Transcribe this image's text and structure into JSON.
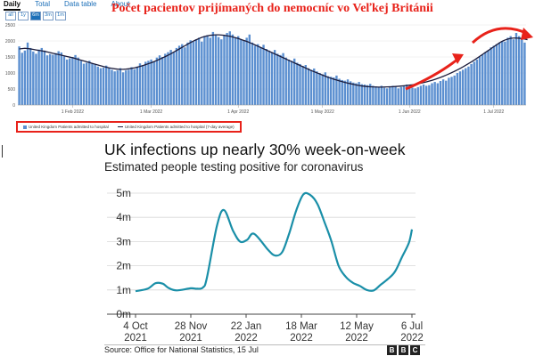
{
  "dashboard": {
    "tabs": [
      {
        "label": "Daily",
        "active": true
      },
      {
        "label": "Total",
        "active": false
      },
      {
        "label": "Data table",
        "active": false
      },
      {
        "label": "About",
        "active": false
      }
    ],
    "ranges": [
      {
        "label": "all",
        "active": false
      },
      {
        "label": "1y",
        "active": false
      },
      {
        "label": "6m",
        "active": true
      },
      {
        "label": "3m",
        "active": false
      },
      {
        "label": "1m",
        "active": false
      }
    ],
    "annotation_title": "Počet pacientov prijímaných do nemocníc vo Veľkej Británii",
    "legend": {
      "bars": "United Kingdom Patients admitted to hospital",
      "line": "United Kingdom Patients admitted to hospital (7-day average)"
    },
    "colors": {
      "bars": "#5b8fd0",
      "line": "#1b1b3a",
      "annotation": "#e8221a"
    }
  },
  "bbc": {
    "title": "UK infections up nearly 30% week-on-week",
    "subtitle": "Estimated people testing positive for coronavirus",
    "source": "Source: Office for National Statistics, 15 Jul",
    "logo_letters": [
      "B",
      "B",
      "C"
    ],
    "colors": {
      "line": "#1a8fa8",
      "grid": "#d8d8d8"
    }
  },
  "chart_data": [
    {
      "type": "bar",
      "ylim": [
        0,
        2500
      ],
      "yticks": [
        "0",
        "500",
        "1000",
        "1500",
        "2000",
        "2500"
      ],
      "xticks": [
        {
          "label": "1 Feb 2022",
          "index": 19
        },
        {
          "label": "1 Mar 2022",
          "index": 47
        },
        {
          "label": "1 Apr 2022",
          "index": 78
        },
        {
          "label": "1 May 2022",
          "index": 108
        },
        {
          "label": "1 Jun 2022",
          "index": 139
        },
        {
          "label": "1 Jul 2022",
          "index": 169
        }
      ],
      "series": [
        {
          "name": "United Kingdom Patients admitted to hospital",
          "type": "bar",
          "values": [
            1830,
            1630,
            1700,
            1950,
            1780,
            1670,
            1600,
            1730,
            1780,
            1700,
            1550,
            1590,
            1570,
            1620,
            1680,
            1640,
            1520,
            1420,
            1460,
            1500,
            1560,
            1480,
            1380,
            1290,
            1320,
            1380,
            1300,
            1260,
            1200,
            1150,
            1170,
            1230,
            1160,
            1100,
            1050,
            1080,
            1150,
            1020,
            1080,
            1100,
            1180,
            1120,
            1200,
            1300,
            1250,
            1350,
            1380,
            1420,
            1350,
            1480,
            1550,
            1500,
            1600,
            1650,
            1720,
            1650,
            1780,
            1850,
            1900,
            1800,
            1950,
            2020,
            1980,
            2050,
            2100,
            1980,
            2150,
            2180,
            2100,
            2280,
            2200,
            2120,
            2050,
            2180,
            2250,
            2300,
            2200,
            2100,
            2150,
            2050,
            2000,
            2100,
            2200,
            1950,
            1850,
            1900,
            1800,
            1880,
            1750,
            1700,
            1650,
            1720,
            1600,
            1560,
            1620,
            1480,
            1420,
            1380,
            1450,
            1320,
            1280,
            1220,
            1250,
            1150,
            1100,
            1140,
            1050,
            1000,
            960,
            1020,
            900,
            880,
            860,
            920,
            820,
            780,
            760,
            800,
            740,
            700,
            680,
            720,
            650,
            640,
            620,
            660,
            600,
            580,
            560,
            600,
            540,
            520,
            550,
            600,
            580,
            520,
            560,
            600,
            640,
            580,
            540,
            520,
            560,
            600,
            640,
            600,
            620,
            680,
            720,
            680,
            750,
            800,
            760,
            850,
            880,
            920,
            1000,
            1050,
            1100,
            1150,
            1200,
            1280,
            1350,
            1420,
            1500,
            1580,
            1650,
            1700,
            1800,
            1850,
            1900,
            1950,
            2000,
            1980,
            2100,
            2150,
            2050,
            2250,
            2150,
            2050,
            1950
          ]
        },
        {
          "name": "United Kingdom Patients admitted to hospital (7-day average)",
          "type": "line",
          "values": [
            1750,
            1760,
            1770,
            1765,
            1750,
            1735,
            1720,
            1705,
            1690,
            1675,
            1655,
            1635,
            1615,
            1595,
            1575,
            1555,
            1535,
            1515,
            1495,
            1475,
            1450,
            1425,
            1400,
            1375,
            1350,
            1325,
            1300,
            1275,
            1250,
            1225,
            1200,
            1180,
            1160,
            1145,
            1130,
            1120,
            1115,
            1115,
            1120,
            1130,
            1145,
            1160,
            1180,
            1205,
            1230,
            1260,
            1290,
            1320,
            1355,
            1390,
            1430,
            1470,
            1510,
            1555,
            1600,
            1650,
            1700,
            1750,
            1800,
            1850,
            1900,
            1950,
            1995,
            2035,
            2075,
            2110,
            2140,
            2160,
            2175,
            2185,
            2190,
            2190,
            2185,
            2175,
            2160,
            2145,
            2125,
            2100,
            2075,
            2045,
            2015,
            1985,
            1950,
            1915,
            1875,
            1835,
            1795,
            1755,
            1715,
            1675,
            1635,
            1595,
            1555,
            1515,
            1475,
            1435,
            1395,
            1355,
            1315,
            1275,
            1235,
            1195,
            1155,
            1115,
            1075,
            1040,
            1005,
            970,
            935,
            900,
            865,
            835,
            805,
            780,
            755,
            730,
            705,
            685,
            665,
            645,
            625,
            610,
            595,
            585,
            575,
            570,
            565,
            562,
            560,
            560,
            562,
            565,
            568,
            572,
            578,
            585,
            592,
            600,
            610,
            620,
            632,
            646,
            662,
            680,
            700,
            722,
            746,
            772,
            800,
            830,
            862,
            896,
            932,
            970,
            1010,
            1052,
            1096,
            1142,
            1190,
            1240,
            1292,
            1346,
            1402,
            1460,
            1520,
            1580,
            1640,
            1700,
            1760,
            1820,
            1880,
            1940,
            1990,
            2030,
            2060,
            2080,
            2090,
            2090,
            2085,
            2075,
            2060,
            2040
          ]
        }
      ]
    },
    {
      "type": "line",
      "title": "UK infections up nearly 30% week-on-week",
      "subtitle": "Estimated people testing positive for coronavirus",
      "ylim": [
        0,
        5
      ],
      "yticks": [
        {
          "value": 0,
          "label": "0m"
        },
        {
          "value": 1,
          "label": "1m"
        },
        {
          "value": 2,
          "label": "2m"
        },
        {
          "value": 3,
          "label": "3m"
        },
        {
          "value": 4,
          "label": "4m"
        },
        {
          "value": 5,
          "label": "5m"
        }
      ],
      "xticks": [
        {
          "date": "2021-10-04",
          "line1": "4 Oct",
          "line2": "2021"
        },
        {
          "date": "2021-11-28",
          "line1": "28 Nov",
          "line2": "2021"
        },
        {
          "date": "2022-01-22",
          "line1": "22 Jan",
          "line2": "2022"
        },
        {
          "date": "2022-03-18",
          "line1": "18 Mar",
          "line2": "2022"
        },
        {
          "date": "2022-05-12",
          "line1": "12 May",
          "line2": "2022"
        },
        {
          "date": "2022-07-06",
          "line1": "6 Jul",
          "line2": "2022"
        }
      ],
      "xlim": [
        "2021-10-04",
        "2022-07-06"
      ],
      "grid": true,
      "series": [
        {
          "values": [
            {
              "x": "2021-10-04",
              "y": 0.95
            },
            {
              "x": "2021-10-16",
              "y": 1.05
            },
            {
              "x": "2021-10-24",
              "y": 1.28
            },
            {
              "x": "2021-10-31",
              "y": 1.26
            },
            {
              "x": "2021-11-06",
              "y": 1.08
            },
            {
              "x": "2021-11-14",
              "y": 0.98
            },
            {
              "x": "2021-11-28",
              "y": 1.07
            },
            {
              "x": "2021-12-04",
              "y": 1.05
            },
            {
              "x": "2021-12-10",
              "y": 1.1
            },
            {
              "x": "2021-12-14",
              "y": 1.5
            },
            {
              "x": "2021-12-24",
              "y": 3.65
            },
            {
              "x": "2021-12-31",
              "y": 4.3
            },
            {
              "x": "2022-01-09",
              "y": 3.45
            },
            {
              "x": "2022-01-16",
              "y": 3.0
            },
            {
              "x": "2022-01-23",
              "y": 3.07
            },
            {
              "x": "2022-01-30",
              "y": 3.32
            },
            {
              "x": "2022-02-13",
              "y": 2.65
            },
            {
              "x": "2022-02-20",
              "y": 2.42
            },
            {
              "x": "2022-02-27",
              "y": 2.57
            },
            {
              "x": "2022-03-06",
              "y": 3.35
            },
            {
              "x": "2022-03-13",
              "y": 4.3
            },
            {
              "x": "2022-03-20",
              "y": 4.95
            },
            {
              "x": "2022-03-27",
              "y": 4.92
            },
            {
              "x": "2022-04-03",
              "y": 4.55
            },
            {
              "x": "2022-04-10",
              "y": 3.8
            },
            {
              "x": "2022-04-17",
              "y": 3.0
            },
            {
              "x": "2022-04-24",
              "y": 2.0
            },
            {
              "x": "2022-05-01",
              "y": 1.55
            },
            {
              "x": "2022-05-08",
              "y": 1.3
            },
            {
              "x": "2022-05-15",
              "y": 1.17
            },
            {
              "x": "2022-05-22",
              "y": 1.0
            },
            {
              "x": "2022-05-29",
              "y": 0.98
            },
            {
              "x": "2022-06-05",
              "y": 1.22
            },
            {
              "x": "2022-06-12",
              "y": 1.45
            },
            {
              "x": "2022-06-19",
              "y": 1.75
            },
            {
              "x": "2022-06-26",
              "y": 2.35
            },
            {
              "x": "2022-07-03",
              "y": 2.95
            },
            {
              "x": "2022-07-06",
              "y": 3.5
            }
          ]
        }
      ]
    }
  ]
}
